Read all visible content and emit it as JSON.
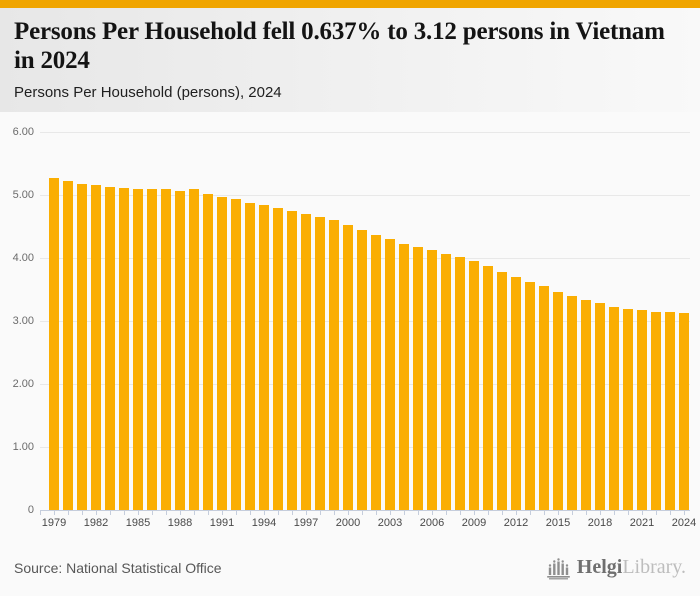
{
  "page": {
    "title": "Persons Per Household fell 0.637% to 3.12 persons in Vietnam in 2024",
    "subtitle": "Persons Per Household (persons), 2024",
    "source": "Source: National Statistical Office",
    "brand": {
      "primary": "Helgi",
      "secondary": "Library."
    },
    "colors": {
      "accent_top_bar": "#F0A500",
      "bar": "#FAAE02",
      "gridline": "#E8E8E8",
      "axis": "#C5CDDC"
    }
  },
  "chart_data": {
    "type": "bar",
    "title": "Persons Per Household fell 0.637% to 3.12 persons in Vietnam in 2024",
    "subtitle": "Persons Per Household (persons), 2024",
    "xlabel": "",
    "ylabel": "Persons Per Household (persons)",
    "ylim": [
      0,
      6
    ],
    "grid": true,
    "legend": "none",
    "ytick_values": [
      6,
      5,
      4,
      3,
      2,
      1,
      0
    ],
    "ytick_labels": [
      "6.00",
      "5.00",
      "4.00",
      "3.00",
      "2.00",
      "1.00",
      "0"
    ],
    "xtick_labels": [
      "1979",
      "1982",
      "1985",
      "1988",
      "1991",
      "1994",
      "1997",
      "2000",
      "2003",
      "2006",
      "2009",
      "2012",
      "2015",
      "2018",
      "2021",
      "2024"
    ],
    "xtick_every": 3,
    "x": [
      1979,
      1980,
      1981,
      1982,
      1983,
      1984,
      1985,
      1986,
      1987,
      1988,
      1989,
      1990,
      1991,
      1992,
      1993,
      1994,
      1995,
      1996,
      1997,
      1998,
      1999,
      2000,
      2001,
      2002,
      2003,
      2004,
      2005,
      2006,
      2007,
      2008,
      2009,
      2010,
      2011,
      2012,
      2013,
      2014,
      2015,
      2016,
      2017,
      2018,
      2019,
      2020,
      2021,
      2022,
      2023,
      2024
    ],
    "values": [
      5.27,
      5.22,
      5.18,
      5.16,
      5.13,
      5.11,
      5.1,
      5.1,
      5.09,
      5.07,
      5.09,
      5.02,
      4.97,
      4.93,
      4.88,
      4.84,
      4.79,
      4.74,
      4.7,
      4.65,
      4.6,
      4.52,
      4.44,
      4.37,
      4.3,
      4.23,
      4.17,
      4.12,
      4.06,
      4.01,
      3.95,
      3.87,
      3.78,
      3.7,
      3.62,
      3.55,
      3.46,
      3.39,
      3.33,
      3.28,
      3.23,
      3.19,
      3.17,
      3.15,
      3.14,
      3.12
    ]
  }
}
